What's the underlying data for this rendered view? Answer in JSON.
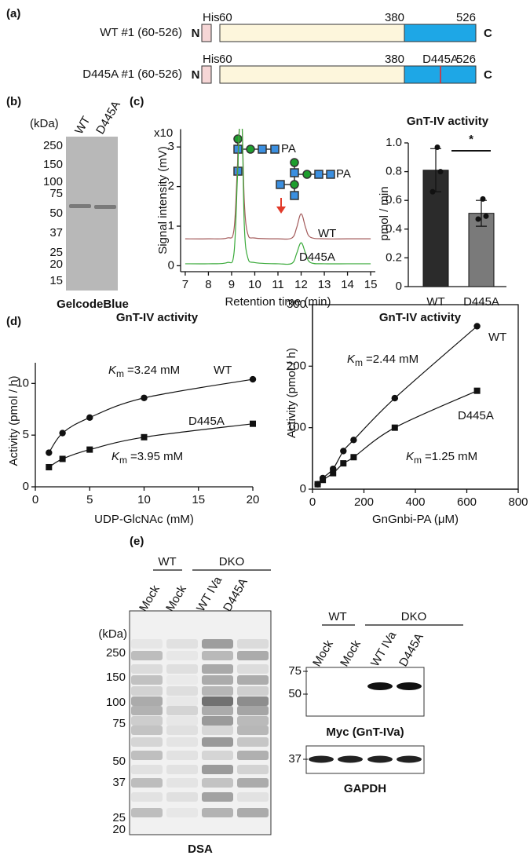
{
  "panels": {
    "a": {
      "label": "(a)",
      "constructs": [
        {
          "name": "WT #1 (60-526)",
          "tag": "His",
          "start": "60",
          "boundary": "380",
          "end": "526",
          "n": "N",
          "c": "C"
        },
        {
          "name": "D445A #1 (60-526)",
          "tag": "His",
          "start": "60",
          "boundary": "380",
          "mutation": "D445A",
          "end": "526",
          "n": "N",
          "c": "C"
        }
      ]
    },
    "b": {
      "label": "(b)",
      "unit": "(kDa)",
      "lanes": [
        "WT",
        "D445A"
      ],
      "markers": [
        "250",
        "150",
        "100",
        "75",
        "50",
        "37",
        "25",
        "20",
        "15"
      ],
      "stain": "GelcodeBlue"
    },
    "c": {
      "label": "(c)"
    },
    "d": {
      "label": "(d)"
    },
    "e": {
      "label": "(e)",
      "groups": [
        "WT",
        "DKO"
      ],
      "lanes": [
        "Mock",
        "Mock",
        "WT IVa",
        "D445A"
      ],
      "unit": "(kDa)",
      "dsa_markers": [
        "250",
        "150",
        "100",
        "75",
        "50",
        "37",
        "25",
        "20"
      ],
      "dsa_label": "DSA",
      "myc_groups": [
        "WT",
        "DKO"
      ],
      "myc_lanes": [
        "Mock",
        "Mock",
        "WT IVa",
        "D445A"
      ],
      "myc_markers": [
        "75",
        "50"
      ],
      "myc_label": "Myc (GnT-IVa)",
      "gapdh_markers": [
        "37"
      ],
      "gapdh_label": "GAPDH"
    }
  },
  "chart_data": [
    {
      "type": "chromatogram",
      "ylabel": "Signal intensity (mV)",
      "xlabel": "Retention time (min)",
      "yscale_label": "x10",
      "glycan_labels": [
        "PA",
        "PA"
      ],
      "x": [
        7,
        8,
        8.8,
        9.1,
        9.25,
        9.35,
        9.45,
        9.55,
        9.7,
        10,
        11,
        11.6,
        11.8,
        11.95,
        12.05,
        12.2,
        12.4,
        13,
        14,
        15
      ],
      "series": [
        {
          "name": "WT",
          "color": "#a35a5a",
          "label_color": "#2b2b55",
          "values": [
            0.68,
            0.68,
            0.7,
            0.9,
            2.5,
            3.6,
            3.6,
            1.6,
            0.8,
            0.7,
            0.68,
            0.7,
            0.95,
            1.27,
            1.27,
            0.95,
            0.72,
            0.68,
            0.68,
            0.68
          ]
        },
        {
          "name": "D445A",
          "color": "#3aaa3a",
          "label_color": "#2fa52f",
          "values": [
            0.05,
            0.05,
            0.08,
            0.3,
            2.2,
            3.6,
            3.6,
            1.0,
            0.2,
            0.08,
            0.05,
            0.06,
            0.3,
            0.55,
            0.55,
            0.3,
            0.08,
            0.05,
            0.05,
            0.05
          ]
        }
      ],
      "xlim": [
        6.8,
        15.2
      ],
      "ylim": [
        -0.15,
        3.45
      ],
      "xticks": [
        7,
        8,
        9,
        10,
        11,
        12,
        13,
        14,
        15
      ],
      "yticks": [
        0,
        1,
        2,
        3
      ]
    },
    {
      "type": "bar",
      "title": "GnT-IV activity",
      "ylabel": "pmol / min",
      "categories": [
        "WT",
        "D445A"
      ],
      "values": [
        0.81,
        0.51
      ],
      "errors": [
        0.15,
        0.09
      ],
      "points": [
        [
          0.97,
          0.8,
          0.66
        ],
        [
          0.61,
          0.49,
          0.47
        ]
      ],
      "colors": [
        "#2b2b2b",
        "#7a7a7a"
      ],
      "significance": "*",
      "ylim": [
        0,
        1
      ],
      "yticks": [
        0,
        0.2,
        0.4,
        0.6,
        0.8,
        {
          "value": 1,
          "label": "1.0"
        }
      ]
    },
    {
      "type": "kinetics",
      "title": "GnT-IV activity",
      "xlabel": "UDP-GlcNAc (mM)",
      "ylabel": "Activity (pmol / h)",
      "x": [
        1.25,
        2.5,
        5,
        10,
        20
      ],
      "series": [
        {
          "name": "WT",
          "marker": "circle",
          "color": "#111111",
          "values": [
            3.3,
            5.2,
            6.7,
            8.6,
            10.4
          ]
        },
        {
          "name": "D445A",
          "marker": "square",
          "color": "#111111",
          "values": [
            1.9,
            2.7,
            3.6,
            4.8,
            6.1
          ]
        }
      ],
      "annotations": [
        {
          "symbol": "K",
          "sub": "m",
          "text": "=3.24 mM"
        },
        {
          "symbol": "K",
          "sub": "m",
          "text": "=3.95 mM"
        }
      ],
      "frame": false,
      "xlim": [
        0,
        20
      ],
      "ylim": [
        0,
        12
      ],
      "xticks": [
        0,
        5,
        10,
        15,
        20
      ],
      "yticks": [
        0,
        5,
        10
      ]
    },
    {
      "type": "kinetics",
      "title": "GnT-IV activity",
      "xlabel": "GnGnbi-PA (μM)",
      "ylabel": "Activity (pmol / h)",
      "x": [
        20,
        40,
        80,
        120,
        160,
        320,
        640
      ],
      "series": [
        {
          "name": "WT",
          "marker": "circle",
          "color": "#111111",
          "values": [
            8,
            18,
            33,
            62,
            80,
            148,
            265
          ]
        },
        {
          "name": "D445A",
          "marker": "square",
          "color": "#111111",
          "values": [
            8,
            15,
            26,
            42,
            52,
            100,
            160
          ]
        }
      ],
      "annotations": [
        {
          "symbol": "K",
          "sub": "m",
          "text": "=2.44 mM"
        },
        {
          "symbol": "K",
          "sub": "m",
          "text": "=1.25 mM"
        }
      ],
      "frame": true,
      "xlim": [
        0,
        800
      ],
      "ylim": [
        0,
        300
      ],
      "xticks": [
        0,
        200,
        400,
        600,
        800
      ],
      "yticks": [
        0,
        100,
        200,
        300
      ]
    }
  ]
}
